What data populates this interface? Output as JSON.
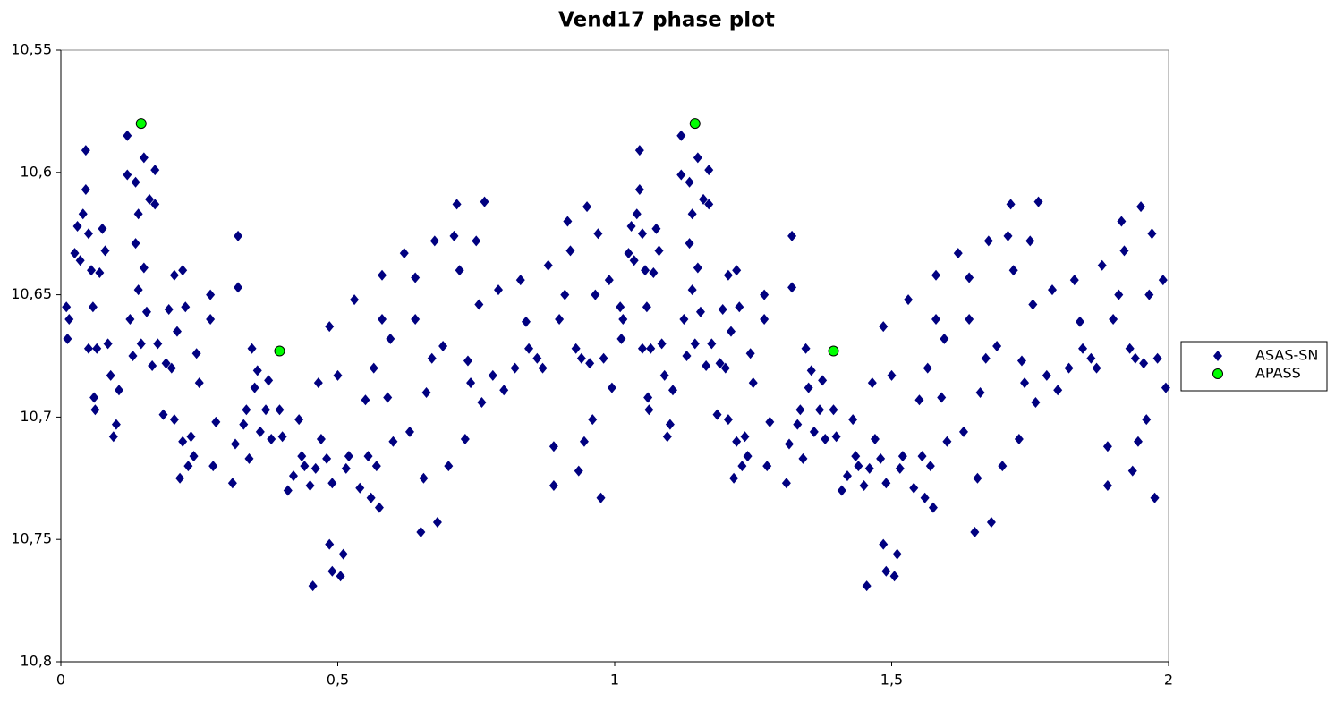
{
  "chart_data": {
    "type": "scatter",
    "title": "Vend17 phase plot",
    "xlim": [
      0,
      2
    ],
    "xticks": [
      0,
      {
        "value": 0.5,
        "label": "0,5"
      },
      1,
      {
        "value": 1.5,
        "label": "1,5"
      },
      2
    ],
    "ylim": [
      10.55,
      10.8
    ],
    "y_inverted": true,
    "yticks": [
      {
        "value": 10.55,
        "label": "10,55"
      },
      {
        "value": 10.6,
        "label": "10,6"
      },
      {
        "value": 10.65,
        "label": "10,65"
      },
      {
        "value": 10.7,
        "label": "10,7"
      },
      {
        "value": 10.75,
        "label": "10,75"
      },
      {
        "value": 10.8,
        "label": "10,8"
      }
    ],
    "grid": false,
    "legend": "right",
    "series": [
      {
        "name": "ASAS-SN",
        "color": "#000080",
        "marker": "diamond",
        "x": [
          0.01,
          0.012,
          0.015,
          0.025,
          0.03,
          0.035,
          0.04,
          0.045,
          0.045,
          0.05,
          0.05,
          0.055,
          0.058,
          0.06,
          0.062,
          0.065,
          0.07,
          0.075,
          0.08,
          0.085,
          0.09,
          0.095,
          0.1,
          0.105,
          0.12,
          0.12,
          0.125,
          0.13,
          0.135,
          0.135,
          0.14,
          0.14,
          0.145,
          0.15,
          0.15,
          0.155,
          0.16,
          0.165,
          0.17,
          0.17,
          0.175,
          0.185,
          0.19,
          0.195,
          0.2,
          0.205,
          0.205,
          0.21,
          0.215,
          0.22,
          0.22,
          0.225,
          0.23,
          0.235,
          0.24,
          0.245,
          0.25,
          0.27,
          0.27,
          0.275,
          0.28,
          0.31,
          0.315,
          0.32,
          0.32,
          0.33,
          0.335,
          0.34,
          0.345,
          0.35,
          0.355,
          0.36,
          0.37,
          0.375,
          0.38,
          0.395,
          0.4,
          0.41,
          0.42,
          0.43,
          0.435,
          0.44,
          0.45,
          0.455,
          0.46,
          0.465,
          0.47,
          0.48,
          0.485,
          0.485,
          0.49,
          0.49,
          0.5,
          0.505,
          0.51,
          0.515,
          0.52,
          0.53,
          0.54,
          0.55,
          0.555,
          0.56,
          0.565,
          0.57,
          0.575,
          0.58,
          0.58,
          0.59,
          0.595,
          0.6,
          0.62,
          0.63,
          0.64,
          0.64,
          0.65,
          0.655,
          0.66,
          0.67,
          0.675,
          0.68,
          0.69,
          0.7,
          0.71,
          0.715,
          0.72,
          0.73,
          0.735,
          0.74,
          0.75,
          0.755,
          0.76,
          0.765,
          0.78,
          0.79,
          0.8,
          0.82,
          0.83,
          0.84,
          0.845,
          0.86,
          0.87,
          0.88,
          0.89,
          0.89,
          0.9,
          0.91,
          0.915,
          0.92,
          0.93,
          0.935,
          0.94,
          0.945,
          0.95,
          0.955,
          0.96,
          0.965,
          0.97,
          0.975,
          0.98,
          0.99,
          0.995,
          1.01,
          1.012,
          1.015,
          1.025,
          1.03,
          1.035,
          1.04,
          1.045,
          1.045,
          1.05,
          1.05,
          1.055,
          1.058,
          1.06,
          1.062,
          1.065,
          1.07,
          1.075,
          1.08,
          1.085,
          1.09,
          1.095,
          1.1,
          1.105,
          1.12,
          1.12,
          1.125,
          1.13,
          1.135,
          1.135,
          1.14,
          1.14,
          1.145,
          1.15,
          1.15,
          1.155,
          1.16,
          1.165,
          1.17,
          1.17,
          1.175,
          1.185,
          1.19,
          1.195,
          1.2,
          1.205,
          1.205,
          1.21,
          1.215,
          1.22,
          1.22,
          1.225,
          1.23,
          1.235,
          1.24,
          1.245,
          1.25,
          1.27,
          1.27,
          1.275,
          1.28,
          1.31,
          1.315,
          1.32,
          1.32,
          1.33,
          1.335,
          1.34,
          1.345,
          1.35,
          1.355,
          1.36,
          1.37,
          1.375,
          1.38,
          1.395,
          1.4,
          1.41,
          1.42,
          1.43,
          1.435,
          1.44,
          1.45,
          1.455,
          1.46,
          1.465,
          1.47,
          1.48,
          1.485,
          1.485,
          1.49,
          1.49,
          1.5,
          1.505,
          1.51,
          1.515,
          1.52,
          1.53,
          1.54,
          1.55,
          1.555,
          1.56,
          1.565,
          1.57,
          1.575,
          1.58,
          1.58,
          1.59,
          1.595,
          1.6,
          1.62,
          1.63,
          1.64,
          1.64,
          1.65,
          1.655,
          1.66,
          1.67,
          1.675,
          1.68,
          1.69,
          1.7,
          1.71,
          1.715,
          1.72,
          1.73,
          1.735,
          1.74,
          1.75,
          1.755,
          1.76,
          1.765,
          1.78,
          1.79,
          1.8,
          1.82,
          1.83,
          1.84,
          1.845,
          1.86,
          1.87,
          1.88,
          1.89,
          1.89,
          1.9,
          1.91,
          1.915,
          1.92,
          1.93,
          1.935,
          1.94,
          1.945,
          1.95,
          1.955,
          1.96,
          1.965,
          1.97,
          1.975,
          1.98,
          1.99,
          1.995
        ],
        "values": [
          10.655,
          10.668,
          10.66,
          10.633,
          10.622,
          10.636,
          10.617,
          10.591,
          10.607,
          10.625,
          10.672,
          10.64,
          10.655,
          10.692,
          10.697,
          10.672,
          10.641,
          10.623,
          10.632,
          10.67,
          10.683,
          10.708,
          10.703,
          10.689,
          10.585,
          10.601,
          10.66,
          10.675,
          10.604,
          10.629,
          10.617,
          10.648,
          10.67,
          10.594,
          10.639,
          10.657,
          10.611,
          10.679,
          10.599,
          10.613,
          10.67,
          10.699,
          10.678,
          10.656,
          10.68,
          10.701,
          10.642,
          10.665,
          10.725,
          10.71,
          10.64,
          10.655,
          10.72,
          10.708,
          10.716,
          10.674,
          10.686,
          10.65,
          10.66,
          10.72,
          10.702,
          10.727,
          10.711,
          10.626,
          10.647,
          10.703,
          10.697,
          10.717,
          10.672,
          10.688,
          10.681,
          10.706,
          10.697,
          10.685,
          10.709,
          10.697,
          10.708,
          10.73,
          10.724,
          10.701,
          10.716,
          10.72,
          10.728,
          10.769,
          10.721,
          10.686,
          10.709,
          10.717,
          10.663,
          10.752,
          10.763,
          10.727,
          10.683,
          10.765,
          10.756,
          10.721,
          10.716,
          10.652,
          10.729,
          10.693,
          10.716,
          10.733,
          10.68,
          10.72,
          10.737,
          10.642,
          10.66,
          10.692,
          10.668,
          10.71,
          10.633,
          10.706,
          10.643,
          10.66,
          10.747,
          10.725,
          10.69,
          10.676,
          10.628,
          10.743,
          10.671,
          10.72,
          10.626,
          10.613,
          10.64,
          10.709,
          10.677,
          10.686,
          10.628,
          10.654,
          10.694,
          10.612,
          10.683,
          10.648,
          10.689,
          10.68,
          10.644,
          10.661,
          10.672,
          10.676,
          10.68,
          10.638,
          10.712,
          10.728,
          10.66,
          10.65,
          10.62,
          10.632,
          10.672,
          10.722,
          10.676,
          10.71,
          10.614,
          10.678,
          10.701,
          10.65,
          10.625,
          10.733,
          10.676,
          10.644,
          10.688,
          10.655,
          10.668,
          10.66,
          10.633,
          10.622,
          10.636,
          10.617,
          10.591,
          10.607,
          10.625,
          10.672,
          10.64,
          10.655,
          10.692,
          10.697,
          10.672,
          10.641,
          10.623,
          10.632,
          10.67,
          10.683,
          10.708,
          10.703,
          10.689,
          10.585,
          10.601,
          10.66,
          10.675,
          10.604,
          10.629,
          10.617,
          10.648,
          10.67,
          10.594,
          10.639,
          10.657,
          10.611,
          10.679,
          10.599,
          10.613,
          10.67,
          10.699,
          10.678,
          10.656,
          10.68,
          10.701,
          10.642,
          10.665,
          10.725,
          10.71,
          10.64,
          10.655,
          10.72,
          10.708,
          10.716,
          10.674,
          10.686,
          10.65,
          10.66,
          10.72,
          10.702,
          10.727,
          10.711,
          10.626,
          10.647,
          10.703,
          10.697,
          10.717,
          10.672,
          10.688,
          10.681,
          10.706,
          10.697,
          10.685,
          10.709,
          10.697,
          10.708,
          10.73,
          10.724,
          10.701,
          10.716,
          10.72,
          10.728,
          10.769,
          10.721,
          10.686,
          10.709,
          10.717,
          10.663,
          10.752,
          10.763,
          10.727,
          10.683,
          10.765,
          10.756,
          10.721,
          10.716,
          10.652,
          10.729,
          10.693,
          10.716,
          10.733,
          10.68,
          10.72,
          10.737,
          10.642,
          10.66,
          10.692,
          10.668,
          10.71,
          10.633,
          10.706,
          10.643,
          10.66,
          10.747,
          10.725,
          10.69,
          10.676,
          10.628,
          10.743,
          10.671,
          10.72,
          10.626,
          10.613,
          10.64,
          10.709,
          10.677,
          10.686,
          10.628,
          10.654,
          10.694,
          10.612,
          10.683,
          10.648,
          10.689,
          10.68,
          10.644,
          10.661,
          10.672,
          10.676,
          10.68,
          10.638,
          10.712,
          10.728,
          10.66,
          10.65,
          10.62,
          10.632,
          10.672,
          10.722,
          10.676,
          10.71,
          10.614,
          10.678,
          10.701,
          10.65,
          10.625,
          10.733,
          10.676,
          10.644,
          10.688
        ]
      },
      {
        "name": "APASS",
        "color": "#00ff00",
        "marker": "circle",
        "x": [
          0.145,
          0.395,
          1.145,
          1.395
        ],
        "values": [
          10.58,
          10.673,
          10.58,
          10.673
        ]
      }
    ]
  }
}
